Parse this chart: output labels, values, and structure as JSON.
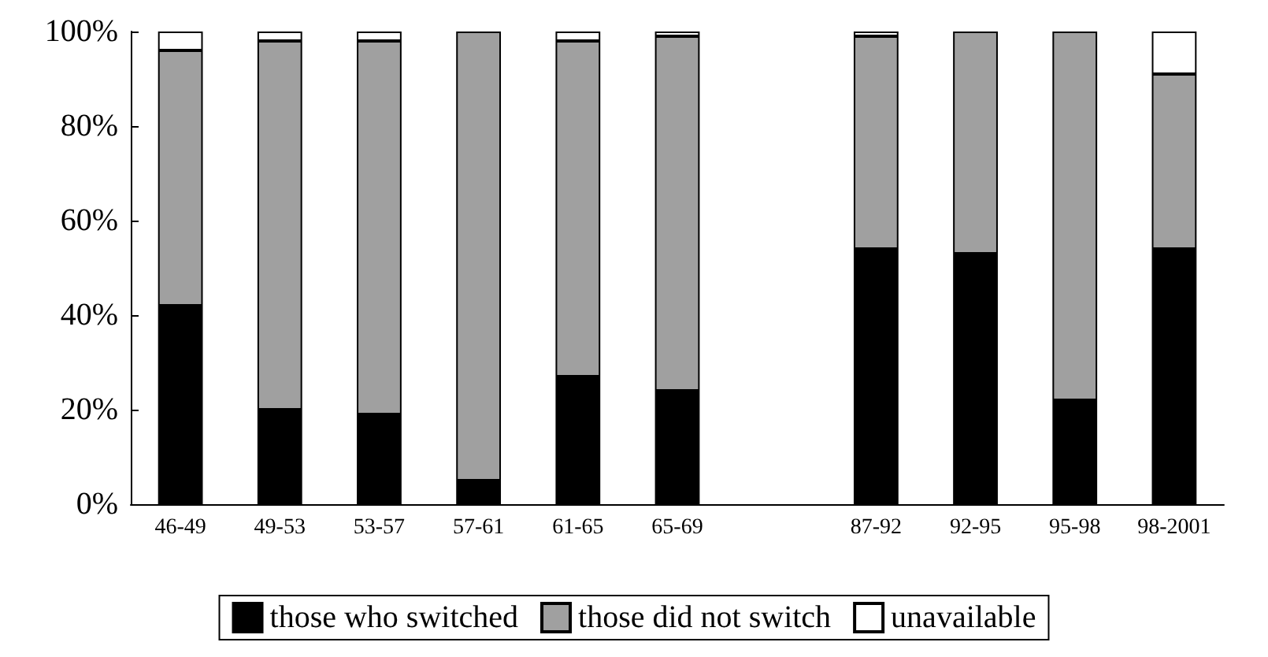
{
  "chart_data": {
    "type": "bar",
    "stacked": true,
    "categories": [
      "46-49",
      "49-53",
      "53-57",
      "57-61",
      "61-65",
      "65-69",
      null,
      "87-92",
      "92-95",
      "95-98",
      "98-2001"
    ],
    "series": [
      {
        "name": "those who switched",
        "color": "#000000",
        "values": [
          42,
          20,
          19,
          5,
          27,
          24,
          null,
          54,
          53,
          22,
          54
        ]
      },
      {
        "name": "those did not switch",
        "color": "#a0a0a0",
        "values": [
          54,
          78,
          79,
          95,
          71,
          75,
          null,
          45,
          47,
          78,
          37
        ]
      },
      {
        "name": "unavailable",
        "color": "#ffffff",
        "values": [
          4,
          2,
          2,
          0,
          2,
          1,
          null,
          1,
          0,
          0,
          9
        ]
      }
    ],
    "ylim": [
      0,
      100
    ],
    "yticks": [
      {
        "value": 0,
        "label": "0%"
      },
      {
        "value": 20,
        "label": "20%"
      },
      {
        "value": 40,
        "label": "40%"
      },
      {
        "value": 60,
        "label": "60%"
      },
      {
        "value": 80,
        "label": "80%"
      },
      {
        "value": 100,
        "label": "100%"
      }
    ],
    "grid": false,
    "legend": "bottom"
  }
}
